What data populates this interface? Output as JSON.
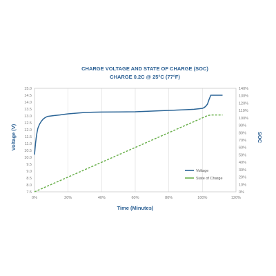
{
  "chart_data": {
    "type": "line",
    "title_line1": "CHARGE VOLTAGE AND STATE OF CHARGE (SOC)",
    "title_line2": "CHARGE 0.2C @ 25°C (77°F)",
    "xlabel": "Time (Minutes)",
    "ylabel_left": "Voltage (V)",
    "ylabel_right": "SOC",
    "x_ticks": [
      "0%",
      "20%",
      "40%",
      "60%",
      "80%",
      "100%",
      "120%"
    ],
    "y_left_ticks": [
      "7.5",
      "8.0",
      "8.5",
      "9.0",
      "9.5",
      "10.0",
      "10.5",
      "11.0",
      "11.5",
      "12.0",
      "12.5",
      "13.0",
      "13.5",
      "14.0",
      "14.5",
      "15.0"
    ],
    "y_right_ticks": [
      "0%",
      "10%",
      "20%",
      "30%",
      "40%",
      "50%",
      "60%",
      "70%",
      "80%",
      "90%",
      "100%",
      "110%",
      "120%",
      "130%",
      "140%"
    ],
    "xlim": [
      0,
      120
    ],
    "ylim_left": [
      7.5,
      15.0
    ],
    "ylim_right": [
      0,
      140
    ],
    "grid": "vertical",
    "legend": "lower-right",
    "series": [
      {
        "name": "Voltage",
        "axis": "left",
        "color": "#2a6496",
        "x": [
          0,
          0.3,
          0.6,
          1,
          1.5,
          2,
          3,
          4,
          5,
          6,
          7,
          8,
          10,
          12,
          15,
          18,
          20,
          25,
          30,
          35,
          40,
          50,
          60,
          70,
          80,
          90,
          95,
          98,
          100,
          101,
          102,
          103,
          104,
          105,
          106,
          107,
          108,
          110,
          112
        ],
        "y": [
          10.2,
          10.6,
          11.0,
          11.4,
          11.8,
          12.1,
          12.4,
          12.6,
          12.75,
          12.85,
          12.92,
          12.97,
          13.0,
          13.03,
          13.07,
          13.12,
          13.15,
          13.2,
          13.25,
          13.27,
          13.28,
          13.29,
          13.3,
          13.35,
          13.4,
          13.45,
          13.48,
          13.52,
          13.55,
          13.6,
          13.7,
          13.85,
          14.2,
          14.5,
          14.5,
          14.5,
          14.5,
          14.5,
          14.5
        ]
      },
      {
        "name": "State of Charge",
        "axis": "right",
        "color": "#6ab04c",
        "x": [
          0,
          20,
          40,
          60,
          80,
          100,
          103,
          105,
          107,
          110,
          112
        ],
        "y": [
          0,
          20,
          40,
          60,
          80,
          100,
          103,
          104,
          104,
          104,
          104
        ]
      }
    ]
  }
}
